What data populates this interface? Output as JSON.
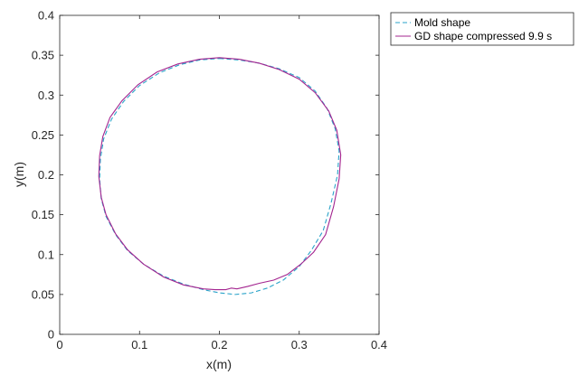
{
  "chart_data": {
    "type": "line",
    "title": "",
    "xlabel": "x(m)",
    "ylabel": "y(m)",
    "xlim": [
      0,
      0.4
    ],
    "ylim": [
      0,
      0.4
    ],
    "xticks": [
      "0",
      "0.1",
      "0.2",
      "0.3",
      "0.4"
    ],
    "yticks": [
      "0",
      "0.05",
      "0.1",
      "0.15",
      "0.2",
      "0.25",
      "0.3",
      "0.35",
      "0.4"
    ],
    "grid": false,
    "legend_position": "outside-top-right",
    "series": [
      {
        "name": "Mold shape",
        "style": "dashed",
        "color": "#2aa3c9",
        "x": [
          0.2,
          0.225,
          0.25,
          0.275,
          0.3,
          0.32,
          0.335,
          0.345,
          0.35,
          0.348,
          0.34,
          0.33,
          0.315,
          0.3,
          0.28,
          0.26,
          0.24,
          0.22,
          0.2,
          0.18,
          0.155,
          0.13,
          0.105,
          0.085,
          0.07,
          0.058,
          0.052,
          0.05,
          0.051,
          0.055,
          0.065,
          0.08,
          0.1,
          0.125,
          0.15,
          0.175,
          0.2
        ],
        "y": [
          0.346,
          0.344,
          0.34,
          0.333,
          0.322,
          0.305,
          0.283,
          0.258,
          0.23,
          0.2,
          0.165,
          0.13,
          0.105,
          0.085,
          0.068,
          0.058,
          0.052,
          0.05,
          0.052,
          0.056,
          0.063,
          0.073,
          0.088,
          0.105,
          0.125,
          0.148,
          0.17,
          0.195,
          0.22,
          0.245,
          0.27,
          0.292,
          0.312,
          0.328,
          0.338,
          0.344,
          0.346
        ]
      },
      {
        "name": "GD shape compressed 9.9 s",
        "style": "solid",
        "color": "#a3248f",
        "x": [
          0.2,
          0.225,
          0.25,
          0.275,
          0.3,
          0.32,
          0.337,
          0.347,
          0.352,
          0.35,
          0.343,
          0.333,
          0.318,
          0.302,
          0.285,
          0.268,
          0.25,
          0.235,
          0.222,
          0.215,
          0.208,
          0.195,
          0.18,
          0.155,
          0.13,
          0.105,
          0.085,
          0.07,
          0.058,
          0.052,
          0.049,
          0.05,
          0.054,
          0.063,
          0.078,
          0.098,
          0.122,
          0.148,
          0.175,
          0.2
        ],
        "y": [
          0.347,
          0.345,
          0.34,
          0.332,
          0.32,
          0.303,
          0.28,
          0.256,
          0.225,
          0.195,
          0.16,
          0.125,
          0.103,
          0.088,
          0.075,
          0.068,
          0.064,
          0.06,
          0.057,
          0.058,
          0.056,
          0.056,
          0.057,
          0.062,
          0.072,
          0.088,
          0.106,
          0.126,
          0.15,
          0.172,
          0.198,
          0.224,
          0.248,
          0.272,
          0.293,
          0.313,
          0.329,
          0.339,
          0.345,
          0.347
        ]
      }
    ]
  }
}
